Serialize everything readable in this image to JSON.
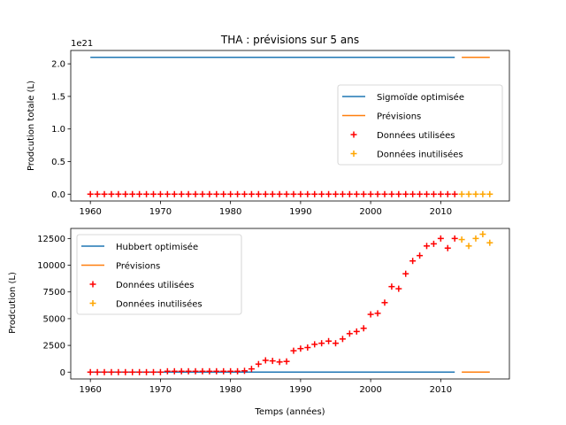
{
  "figure": {
    "title": "THA : prévisions sur 5 ans"
  },
  "colors": {
    "fit": "#1f77b4",
    "forecast": "#ff7f0e",
    "used": "#ff0000",
    "unused": "#ffa500"
  },
  "chart_data": [
    {
      "type": "line",
      "title": "THA : prévisions sur 5 ans",
      "xlabel": "",
      "ylabel": "Prodcution totale (L)",
      "offset_text": "1e21",
      "xlim": [
        1957.2,
        2019.8
      ],
      "ylim": [
        -0.105,
        2.205
      ],
      "xticks": [
        1960,
        1970,
        1980,
        1990,
        2000,
        2010
      ],
      "xtick_labels": [
        "1960",
        "1970",
        "1980",
        "1990",
        "2000",
        "2010"
      ],
      "yticks": [
        0.0,
        0.5,
        1.0,
        1.5,
        2.0
      ],
      "ytick_labels": [
        "0.0",
        "0.5",
        "1.0",
        "1.5",
        "2.0"
      ],
      "legend_position": "center-right",
      "legend": [
        "Sigmoïde optimisée",
        "Prévisions",
        "Données utilisées",
        "Données inutilisées"
      ],
      "series": [
        {
          "name": "Sigmoïde optimisée",
          "kind": "line",
          "color": "#1f77b4",
          "x": [
            1960,
            2012
          ],
          "y": [
            2.1,
            2.1
          ]
        },
        {
          "name": "Prévisions",
          "kind": "line",
          "color": "#ff7f0e",
          "x": [
            2013,
            2017
          ],
          "y": [
            2.1,
            2.1
          ]
        },
        {
          "name": "Données utilisées",
          "kind": "scatter",
          "color": "#ff0000",
          "x": [
            1960,
            1961,
            1962,
            1963,
            1964,
            1965,
            1966,
            1967,
            1968,
            1969,
            1970,
            1971,
            1972,
            1973,
            1974,
            1975,
            1976,
            1977,
            1978,
            1979,
            1980,
            1981,
            1982,
            1983,
            1984,
            1985,
            1986,
            1987,
            1988,
            1989,
            1990,
            1991,
            1992,
            1993,
            1994,
            1995,
            1996,
            1997,
            1998,
            1999,
            2000,
            2001,
            2002,
            2003,
            2004,
            2005,
            2006,
            2007,
            2008,
            2009,
            2010,
            2011,
            2012
          ],
          "y": [
            0,
            0,
            0,
            0,
            0,
            0,
            0,
            0,
            0,
            0,
            0,
            0,
            0,
            0,
            0,
            0,
            0,
            0,
            0,
            0,
            0,
            0,
            0,
            0,
            0,
            0,
            0,
            0,
            0,
            0,
            0,
            0,
            0,
            0,
            0,
            0,
            0,
            0,
            0,
            0,
            0,
            0,
            0,
            0,
            0,
            0,
            0,
            0,
            0,
            0,
            0,
            0,
            0
          ]
        },
        {
          "name": "Données inutilisées",
          "kind": "scatter",
          "color": "#ffa500",
          "x": [
            2013,
            2014,
            2015,
            2016,
            2017
          ],
          "y": [
            0,
            0,
            0,
            0,
            0
          ]
        }
      ]
    },
    {
      "type": "line",
      "title": "",
      "xlabel": "Temps (années)",
      "ylabel": "Prodcution (L)",
      "xlim": [
        1957.2,
        2019.8
      ],
      "ylim": [
        -640,
        13440
      ],
      "xticks": [
        1960,
        1970,
        1980,
        1990,
        2000,
        2010
      ],
      "xtick_labels": [
        "1960",
        "1970",
        "1980",
        "1990",
        "2000",
        "2010"
      ],
      "yticks": [
        0,
        2500,
        5000,
        7500,
        10000,
        12500
      ],
      "ytick_labels": [
        "0",
        "2500",
        "5000",
        "7500",
        "10000",
        "12500"
      ],
      "legend_position": "upper-left",
      "legend": [
        "Hubbert optimisée",
        "Prévisions",
        "Données utilisées",
        "Données inutilisées"
      ],
      "series": [
        {
          "name": "Hubbert optimisée",
          "kind": "line",
          "color": "#1f77b4",
          "x": [
            1960,
            2012
          ],
          "y": [
            0,
            0
          ]
        },
        {
          "name": "Prévisions",
          "kind": "line",
          "color": "#ff7f0e",
          "x": [
            2013,
            2017
          ],
          "y": [
            0,
            0
          ]
        },
        {
          "name": "Données utilisées",
          "kind": "scatter",
          "color": "#ff0000",
          "x": [
            1960,
            1961,
            1962,
            1963,
            1964,
            1965,
            1966,
            1967,
            1968,
            1969,
            1970,
            1971,
            1972,
            1973,
            1974,
            1975,
            1976,
            1977,
            1978,
            1979,
            1980,
            1981,
            1982,
            1983,
            1984,
            1985,
            1986,
            1987,
            1988,
            1989,
            1990,
            1991,
            1992,
            1993,
            1994,
            1995,
            1996,
            1997,
            1998,
            1999,
            2000,
            2001,
            2002,
            2003,
            2004,
            2005,
            2006,
            2007,
            2008,
            2009,
            2010,
            2011,
            2012
          ],
          "y": [
            0,
            0,
            0,
            0,
            0,
            0,
            0,
            0,
            0,
            0,
            0,
            80,
            80,
            80,
            80,
            80,
            80,
            80,
            80,
            80,
            80,
            80,
            120,
            300,
            750,
            1100,
            1050,
            950,
            1000,
            2000,
            2200,
            2300,
            2600,
            2700,
            2900,
            2700,
            3100,
            3600,
            3800,
            4100,
            5400,
            5500,
            6500,
            8000,
            7800,
            9200,
            10400,
            10900,
            11800,
            12000,
            12500,
            11600,
            12500
          ]
        },
        {
          "name": "Données inutilisées",
          "kind": "scatter",
          "color": "#ffa500",
          "x": [
            2013,
            2014,
            2015,
            2016,
            2017
          ],
          "y": [
            12400,
            11800,
            12500,
            12900,
            12100
          ]
        }
      ]
    }
  ]
}
